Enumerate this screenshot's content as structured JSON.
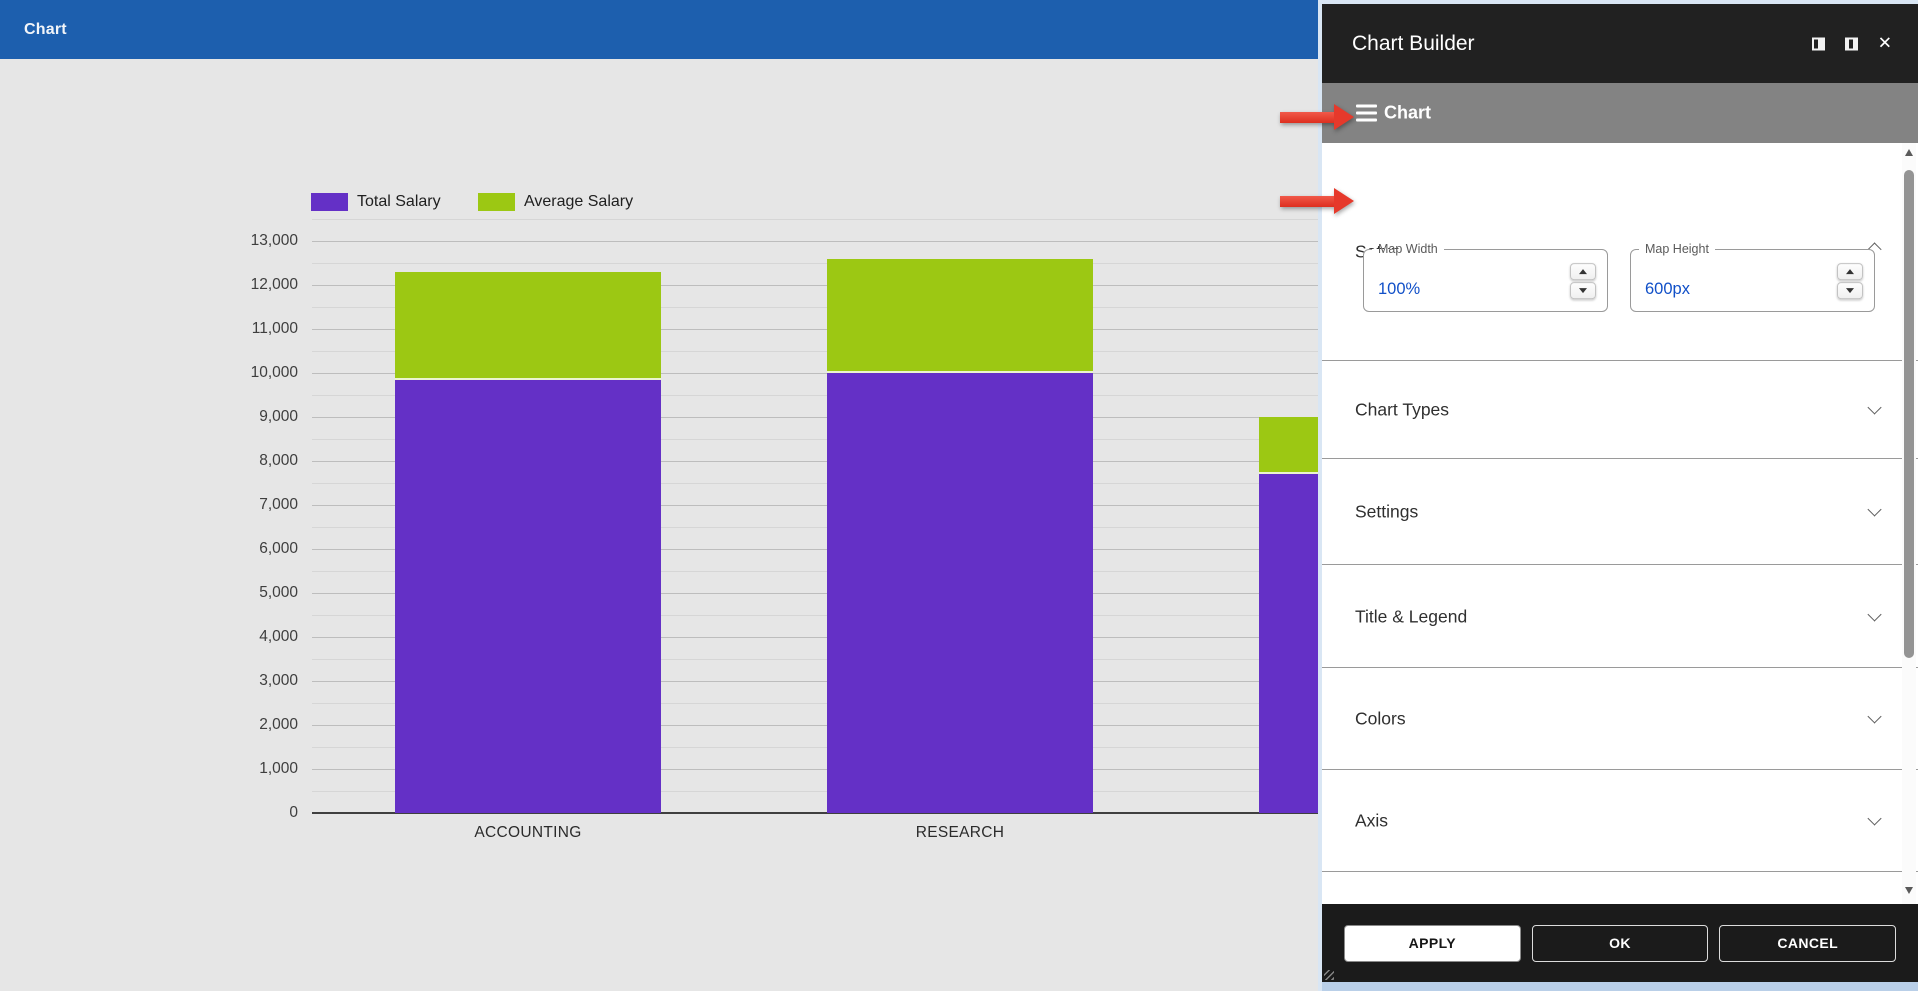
{
  "app_bar": {
    "title": "Chart"
  },
  "chart_data": {
    "type": "bar",
    "stacked": true,
    "categories": [
      "ACCOUNTING",
      "RESEARCH",
      null
    ],
    "series": [
      {
        "name": "Total Salary",
        "color": "#6430c6",
        "values": [
          9850,
          10000,
          7700
        ]
      },
      {
        "name": "Average Salary",
        "color": "#9cc813",
        "values": [
          2450,
          2600,
          1300
        ]
      }
    ],
    "ylim": [
      0,
      13500
    ],
    "ytick_interval": 1000,
    "minor_tick_interval": 500,
    "max_labeled_tick": 13000,
    "tick_label_format": "thousands-comma",
    "legend_position": "top-left",
    "grid": true,
    "plot_background": "#e6e6e6",
    "note": "Third bar is partially hidden behind the Chart Builder panel; its category label is not visible."
  },
  "panel": {
    "title": "Chart Builder",
    "window_controls": [
      {
        "name": "dock-left"
      },
      {
        "name": "dock-right"
      },
      {
        "name": "close",
        "glyph": "✕"
      }
    ],
    "menu_bar": {
      "label": "Chart"
    },
    "sections": [
      {
        "label": "Setup",
        "expanded": true
      },
      {
        "label": "Chart Types",
        "expanded": false
      },
      {
        "label": "Settings",
        "expanded": false
      },
      {
        "label": "Title & Legend",
        "expanded": false
      },
      {
        "label": "Colors",
        "expanded": false
      },
      {
        "label": "Axis",
        "expanded": false
      }
    ],
    "setup_fields": [
      {
        "label": "Map Width",
        "value": "100%"
      },
      {
        "label": "Map Height",
        "value": "600px"
      }
    ],
    "footer_buttons": [
      "APPLY",
      "OK",
      "CANCEL"
    ]
  },
  "annotations": {
    "arrow_color": "#e6392b",
    "arrows": [
      {
        "points_at": "Chart menu bar"
      },
      {
        "points_at": "Setup section"
      }
    ]
  },
  "colors": {
    "app_bar": "#1d5fae",
    "panel_header": "#212121",
    "panel_menu_bar": "#838383",
    "panel_footer": "#1b1b1b",
    "field_value_text": "#1150c8",
    "total_salary": "#6430c6",
    "average_salary": "#9cc813"
  }
}
